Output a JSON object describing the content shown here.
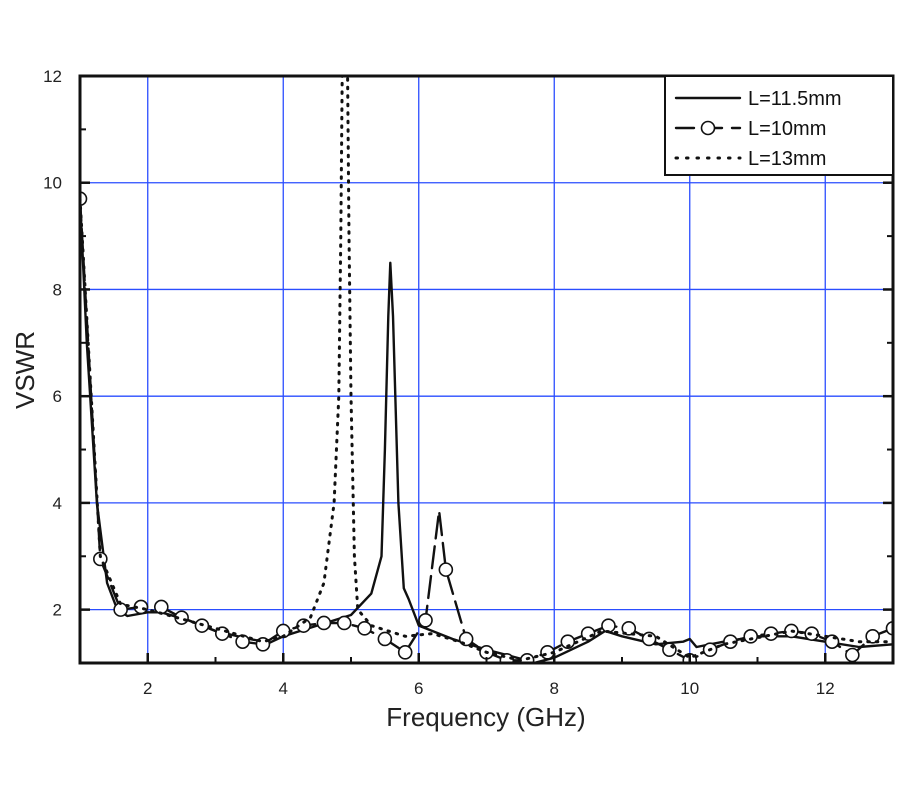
{
  "chart_data": {
    "type": "line",
    "title": "",
    "xlabel": "Frequency (GHz)",
    "ylabel": "VSWR",
    "xlim": [
      1,
      13
    ],
    "ylim": [
      1,
      12
    ],
    "xticks": [
      "2",
      "4",
      "6",
      "8",
      "10",
      "12"
    ],
    "yticks": [
      "2",
      "4",
      "6",
      "8",
      "10",
      "12"
    ],
    "grid": true,
    "grid_color": "#2a4dff",
    "legend_position": "top-right",
    "series": [
      {
        "name": "L=11.5mm",
        "style": "solid",
        "color": "#111111",
        "x": [
          1,
          1.1,
          1.25,
          1.4,
          1.55,
          1.7,
          2,
          2.2,
          2.6,
          3,
          3.5,
          3.8,
          4,
          4.5,
          5,
          5.3,
          5.45,
          5.5,
          5.55,
          5.58,
          5.62,
          5.7,
          5.78,
          5.85,
          6,
          6.5,
          7,
          7.5,
          7.7,
          8,
          8.5,
          8.75,
          9,
          9.5,
          9.9,
          10,
          10.1,
          10.5,
          11,
          11.5,
          12,
          12.5,
          13
        ],
        "y": [
          9.7,
          7,
          4,
          2.5,
          2.0,
          1.88,
          1.95,
          1.95,
          1.8,
          1.6,
          1.45,
          1.38,
          1.5,
          1.7,
          1.9,
          2.3,
          3,
          5,
          7.5,
          8.5,
          7.5,
          4,
          2.4,
          2.2,
          1.7,
          1.45,
          1.25,
          1.08,
          1.0,
          1.1,
          1.4,
          1.6,
          1.5,
          1.35,
          1.4,
          1.45,
          1.3,
          1.4,
          1.5,
          1.5,
          1.4,
          1.3,
          1.35
        ]
      },
      {
        "name": "L=10mm",
        "style": "dash-circle",
        "color": "#111111",
        "x": [
          1,
          1.3,
          1.6,
          1.9,
          2.2,
          2.5,
          2.8,
          3.1,
          3.4,
          3.7,
          4,
          4.3,
          4.6,
          4.9,
          5.2,
          5.5,
          5.8,
          6.1,
          6.3,
          6.4,
          6.7,
          7,
          7.3,
          7.6,
          7.9,
          8.2,
          8.5,
          8.8,
          9.1,
          9.4,
          9.7,
          10,
          10.3,
          10.6,
          10.9,
          11.2,
          11.5,
          11.8,
          12.1,
          12.4,
          12.7,
          13
        ],
        "y": [
          9.7,
          2.95,
          2.0,
          2.05,
          2.05,
          1.85,
          1.7,
          1.55,
          1.4,
          1.35,
          1.6,
          1.7,
          1.75,
          1.75,
          1.65,
          1.45,
          1.2,
          1.8,
          3.85,
          2.75,
          1.45,
          1.2,
          1.05,
          1.05,
          1.2,
          1.4,
          1.55,
          1.7,
          1.65,
          1.45,
          1.25,
          1.05,
          1.25,
          1.4,
          1.5,
          1.55,
          1.6,
          1.55,
          1.4,
          1.15,
          1.5,
          1.65
        ],
        "markers_x": [
          1,
          1.3,
          1.6,
          1.9,
          2.2,
          2.5,
          2.8,
          3.1,
          3.4,
          3.7,
          4,
          4.3,
          4.6,
          4.9,
          5.2,
          5.5,
          5.8,
          6.1,
          6.4,
          6.7,
          7,
          7.3,
          7.6,
          7.9,
          8.2,
          8.5,
          8.8,
          9.1,
          9.4,
          9.7,
          10,
          10.3,
          10.6,
          10.9,
          11.2,
          11.5,
          11.8,
          12.1,
          12.4,
          12.7,
          13
        ]
      },
      {
        "name": "L=13mm",
        "style": "dotted",
        "color": "#111111",
        "x": [
          1,
          1.3,
          1.6,
          2,
          3,
          3.7,
          4,
          4.4,
          4.6,
          4.75,
          4.82,
          4.85,
          4.87,
          4.95,
          4.97,
          5.0,
          5.05,
          5.1,
          5.3,
          5.8,
          6.2,
          6.6,
          7,
          7.5,
          8,
          8.7,
          9.5,
          10,
          10.5,
          11.5,
          12,
          12.5,
          13
        ],
        "y": [
          9.7,
          3,
          2.1,
          2.0,
          1.65,
          1.4,
          1.5,
          1.85,
          2.5,
          4,
          6,
          9,
          12,
          12,
          9,
          6,
          3,
          2,
          1.7,
          1.5,
          1.55,
          1.4,
          1.2,
          1.05,
          1.2,
          1.6,
          1.5,
          1.1,
          1.35,
          1.6,
          1.5,
          1.4,
          1.4
        ]
      }
    ]
  }
}
